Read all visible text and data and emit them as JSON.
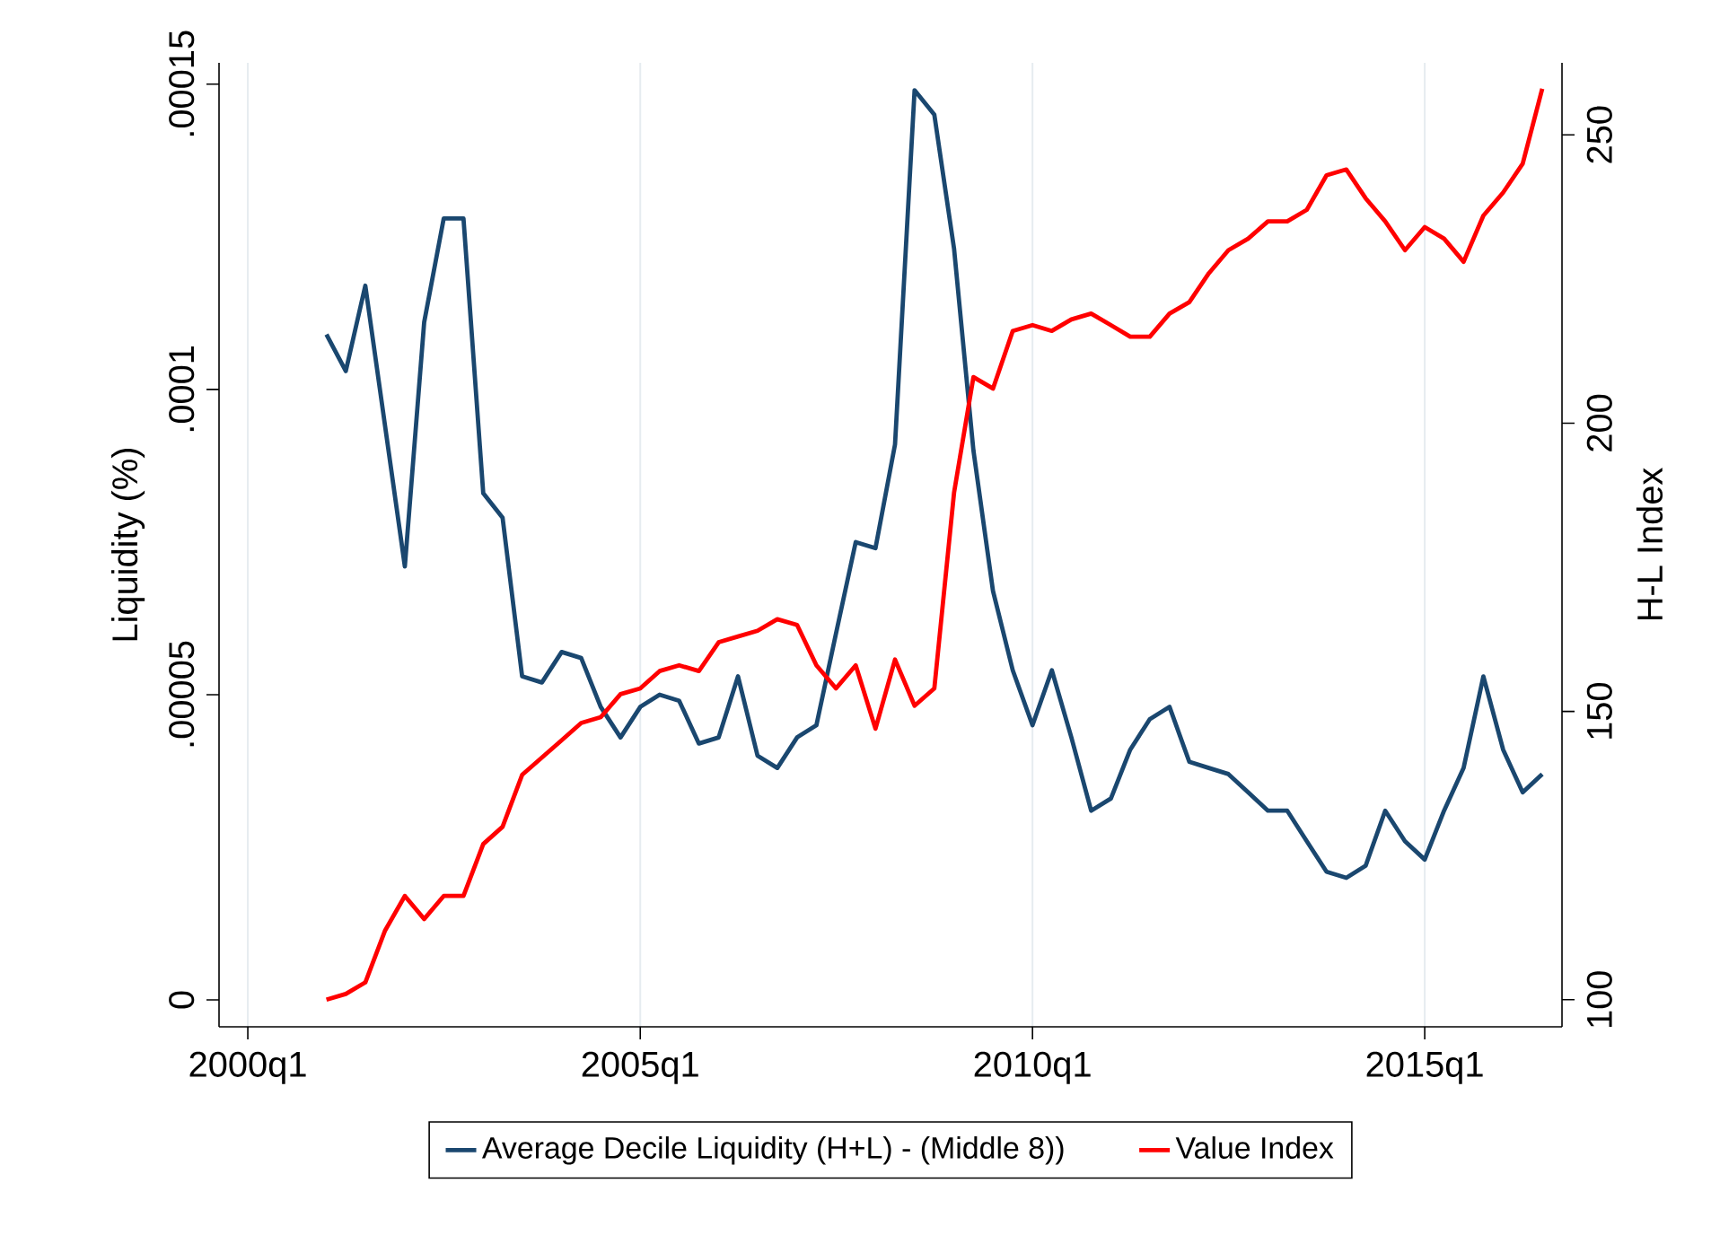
{
  "chart_data": {
    "type": "line",
    "ylabel": "Liquidity (%)",
    "y2label": "H-L Index",
    "x": [
      "2001-01",
      "2001-04",
      "2001-07",
      "2001-10",
      "2002-01",
      "2002-04",
      "2002-07",
      "2002-10",
      "2003-01",
      "2003-04",
      "2003-07",
      "2003-10",
      "2004-01",
      "2004-04",
      "2004-07",
      "2004-10",
      "2005-01",
      "2005-04",
      "2005-07",
      "2005-10",
      "2006-01",
      "2006-04",
      "2006-07",
      "2006-10",
      "2007-01",
      "2007-04",
      "2007-07",
      "2007-10",
      "2008-01",
      "2008-04",
      "2008-07",
      "2008-10",
      "2009-01",
      "2009-04",
      "2009-07",
      "2009-10",
      "2010-01",
      "2010-04",
      "2010-07",
      "2010-10",
      "2011-01",
      "2011-04",
      "2011-07",
      "2011-10",
      "2012-01",
      "2012-04",
      "2012-07",
      "2012-10",
      "2013-01",
      "2013-04",
      "2013-07",
      "2013-10",
      "2014-01",
      "2014-04",
      "2014-07",
      "2014-10",
      "2015-01",
      "2015-04",
      "2015-07",
      "2015-10",
      "2016-01",
      "2016-04",
      "2016-07"
    ],
    "series": [
      {
        "name": "Average Decile Liquidity (H+L) - (Middle 8))",
        "color": "#1a476f",
        "values": [
          0.000109,
          0.000103,
          0.000117,
          9.4e-05,
          7.1e-05,
          0.000111,
          0.000128,
          0.000128,
          8.3e-05,
          7.9e-05,
          5.3e-05,
          5.2e-05,
          5.7e-05,
          5.6e-05,
          4.8e-05,
          4.3e-05,
          4.8e-05,
          5e-05,
          4.9e-05,
          4.2e-05,
          4.3e-05,
          5.3e-05,
          4e-05,
          3.8e-05,
          4.3e-05,
          4.5e-05,
          6e-05,
          7.5e-05,
          7.4e-05,
          9.1e-05,
          0.000149,
          0.000145,
          0.000123,
          9e-05,
          6.7e-05,
          5.4e-05,
          4.5e-05,
          5.4e-05,
          4.3e-05,
          3.1e-05,
          3.3e-05,
          4.1e-05,
          4.6e-05,
          4.8e-05,
          3.9e-05,
          3.8e-05,
          3.7e-05,
          3.4e-05,
          3.1e-05,
          3.1e-05,
          2.6e-05,
          2.1e-05,
          2e-05,
          2.2e-05,
          3.1e-05,
          2.6e-05,
          2.3e-05,
          3.1e-05,
          3.8e-05,
          5.3e-05,
          4.1e-05,
          3.4e-05,
          3.7e-05
        ]
      },
      {
        "name": "Value Index",
        "color": "#ff0000",
        "axis": "y2",
        "values": [
          100,
          101,
          103,
          112,
          118,
          114,
          118,
          118,
          127,
          130,
          139,
          142,
          145,
          148,
          149,
          153,
          154,
          157,
          158,
          157,
          162,
          163,
          164,
          166,
          165,
          158,
          154,
          158,
          147,
          159,
          151,
          154,
          188,
          208,
          206,
          216,
          217,
          216,
          218,
          219,
          217,
          215,
          215,
          219,
          221,
          226,
          230,
          232,
          235,
          235,
          237,
          243,
          244,
          239,
          235,
          230,
          234,
          232,
          228,
          236,
          240,
          245,
          258
        ]
      }
    ],
    "xlim": [
      "1999-08-20",
      "2016-10-01"
    ],
    "xticks": [
      {
        "value": "2000-01",
        "label": "2000q1"
      },
      {
        "value": "2005-01",
        "label": "2005q1"
      },
      {
        "value": "2010-01",
        "label": "2010q1"
      },
      {
        "value": "2015-01",
        "label": "2015q1"
      }
    ],
    "ylim": [
      -4.4e-06,
      0.0001535
    ],
    "yticks": [
      0,
      {
        "value": 5e-05,
        "label": ".00005"
      },
      {
        "value": 0.0001,
        "label": ".0001"
      },
      {
        "value": 0.00015,
        "label": ".00015"
      }
    ],
    "y2lim": [
      95.3,
      262.5
    ],
    "y2ticks": [
      100,
      150,
      200,
      250
    ],
    "grid": "x",
    "legend": "bottom",
    "marker": "none",
    "line_style": "solid"
  }
}
